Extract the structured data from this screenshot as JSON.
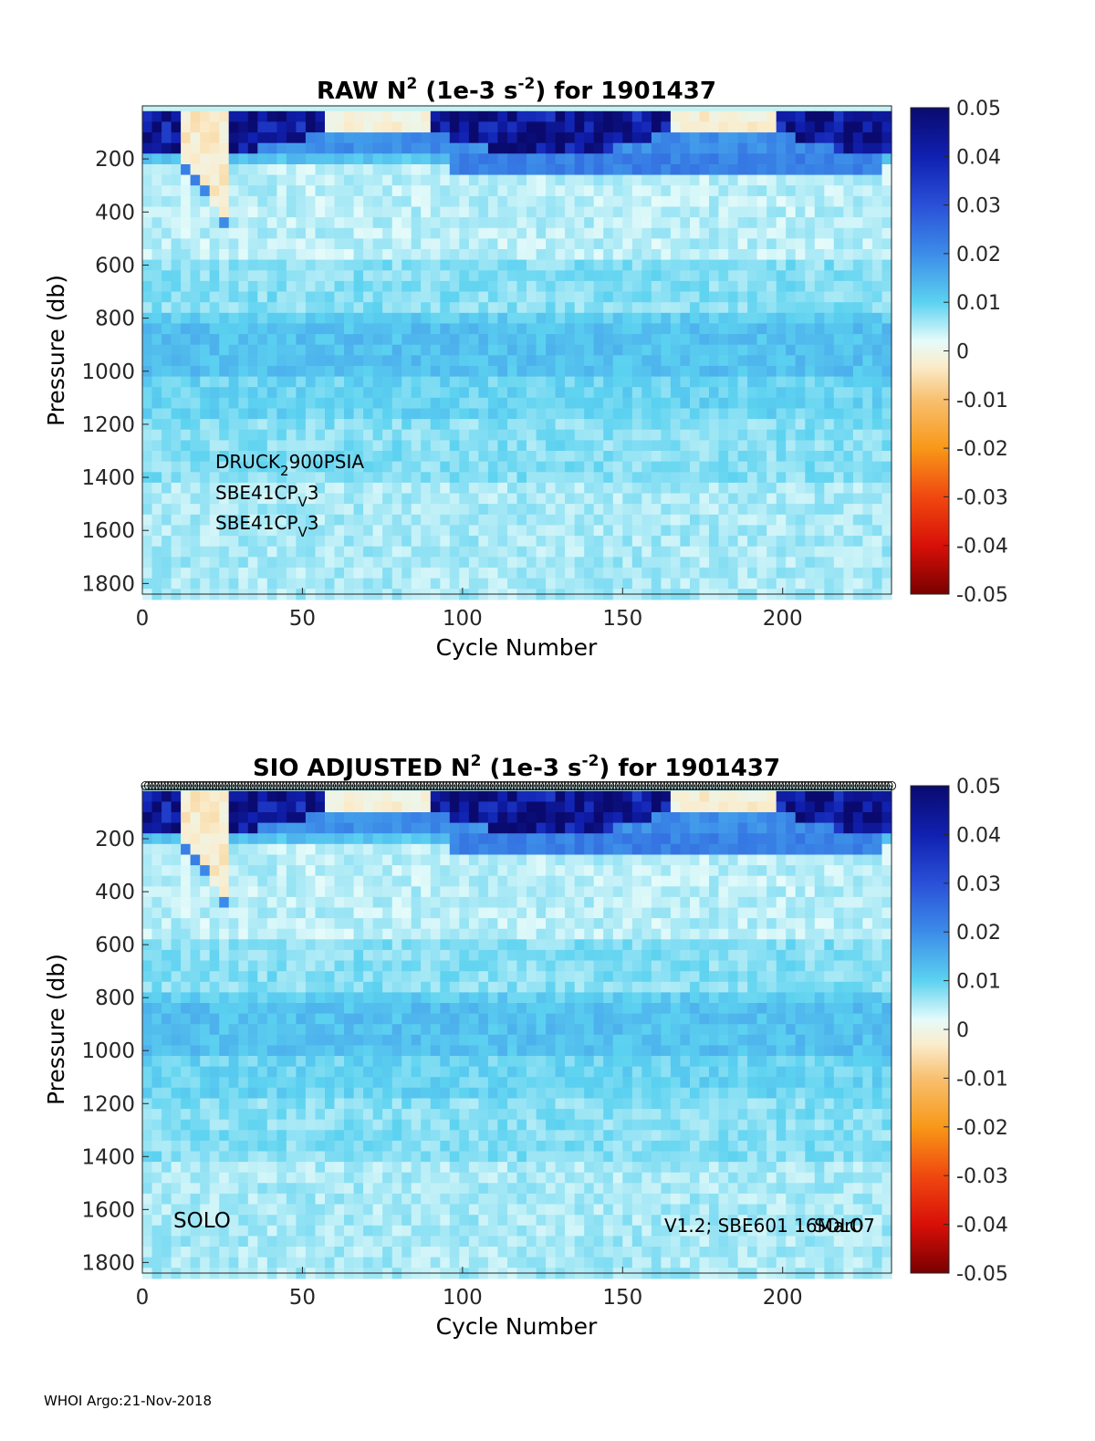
{
  "chart_data": [
    {
      "type": "heatmap",
      "title": {
        "prefix": "RAW N",
        "sup1": "2",
        "mid": " (1e-3 s",
        "sup2": "-2",
        "suffix": ") for 1901437"
      },
      "xlabel": "Cycle Number",
      "ylabel": "Pressure (db)",
      "xlim": [
        0,
        234
      ],
      "ylim": [
        1840,
        0
      ],
      "xticks": [
        0,
        50,
        100,
        150,
        200
      ],
      "yticks": [
        200,
        400,
        600,
        800,
        1000,
        1200,
        1400,
        1600,
        1800
      ],
      "colorbar": {
        "min": -0.05,
        "max": 0.05,
        "ticks": [
          "0.05",
          "0.04",
          "0.03",
          "0.02",
          "0.01",
          "0",
          "-0.01",
          "-0.02",
          "-0.03",
          "-0.04",
          "-0.05"
        ]
      },
      "profile_markers": false,
      "annotations": [
        {
          "name": "sensor-pressure",
          "parts": [
            "DRUCK",
            "2",
            "900PSIA"
          ]
        },
        {
          "name": "sensor-ctd-1",
          "parts": [
            "SBE41CP",
            "V",
            "3"
          ]
        },
        {
          "name": "sensor-ctd-2",
          "parts": [
            "SBE41CP",
            "V",
            "3"
          ]
        }
      ]
    },
    {
      "type": "heatmap",
      "title": {
        "prefix": "SIO  ADJUSTED N",
        "sup1": "2",
        "mid": " (1e-3 s",
        "sup2": "-2",
        "suffix": ") for 1901437"
      },
      "xlabel": "Cycle Number",
      "ylabel": "Pressure (db)",
      "xlim": [
        0,
        234
      ],
      "ylim": [
        1840,
        0
      ],
      "xticks": [
        0,
        50,
        100,
        150,
        200
      ],
      "yticks": [
        200,
        400,
        600,
        800,
        1000,
        1200,
        1400,
        1600,
        1800
      ],
      "colorbar": {
        "min": -0.05,
        "max": 0.05,
        "ticks": [
          "0.05",
          "0.04",
          "0.03",
          "0.02",
          "0.01",
          "0",
          "-0.01",
          "-0.02",
          "-0.03",
          "-0.04",
          "-0.05"
        ]
      },
      "profile_markers": true,
      "float_type": "SOLO",
      "firmware_label": "V1.2; SBE601 16Mar07",
      "firmware_overlay": "SOLO"
    }
  ],
  "footer": "WHOI Argo:21-Nov-2018"
}
